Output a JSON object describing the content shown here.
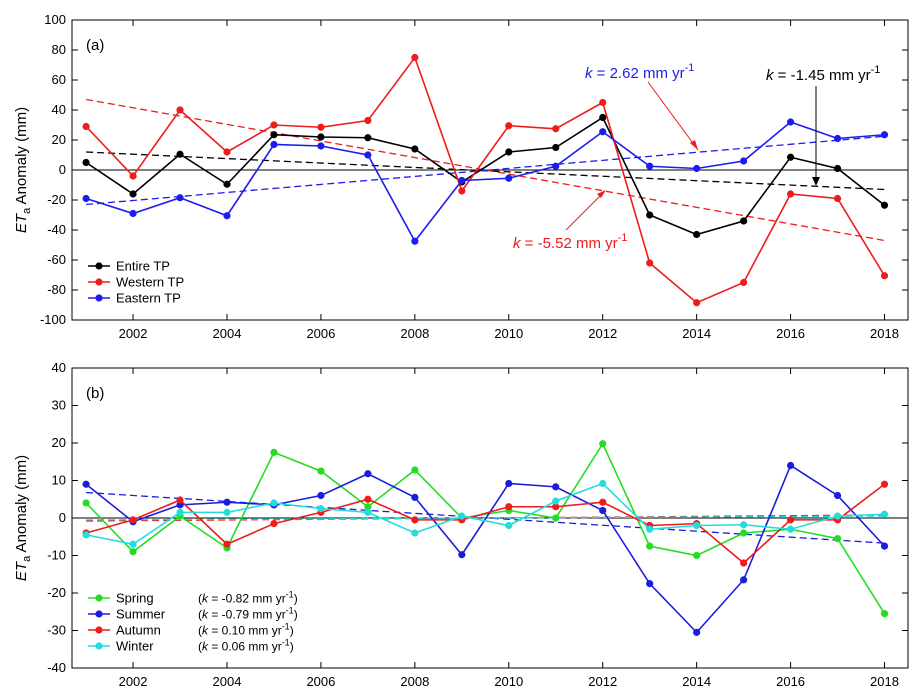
{
  "chart_data": [
    {
      "type": "line",
      "panel_label": "(a)",
      "ylabel_main": "ET",
      "ylabel_sub": "a",
      "ylabel_rest": " Anomaly (mm)",
      "xlim": [
        2000.7,
        2018.5
      ],
      "ylim": [
        -100,
        100
      ],
      "yticks": [
        -100,
        -80,
        -60,
        -40,
        -20,
        0,
        20,
        40,
        60,
        80,
        100
      ],
      "xticks": [
        2002,
        2004,
        2006,
        2008,
        2010,
        2012,
        2014,
        2016,
        2018
      ],
      "x": [
        2001,
        2002,
        2003,
        2004,
        2005,
        2006,
        2007,
        2008,
        2009,
        2010,
        2011,
        2012,
        2013,
        2014,
        2015,
        2016,
        2017,
        2018
      ],
      "legend_position": "bottom-left",
      "series": [
        {
          "name": "Entire TP",
          "color": "#000000",
          "values": [
            5,
            -16,
            10.5,
            -9.5,
            23.5,
            22,
            21.5,
            14,
            -8,
            12,
            15,
            35,
            -30,
            -43,
            -34,
            8.5,
            1,
            -23.5
          ],
          "trend": [
            12,
            -13
          ]
        },
        {
          "name": "Western TP",
          "color": "#ee1c1c",
          "values": [
            29,
            -4,
            40,
            12,
            30,
            28.5,
            33,
            75,
            -14,
            29.5,
            27.5,
            45,
            -62,
            -88.5,
            -75,
            -16,
            -19,
            -70.5
          ],
          "trend": [
            47,
            -47
          ]
        },
        {
          "name": "Eastern  TP",
          "color": "#1c1cee",
          "values": [
            -19,
            -29,
            -18.5,
            -30.5,
            17,
            16,
            10,
            -47.5,
            -7,
            -5.5,
            2.5,
            25.5,
            2.5,
            1,
            6,
            32,
            21,
            23.5
          ],
          "trend": [
            -23,
            22.5
          ]
        }
      ],
      "annotations": [
        {
          "text_k": "k",
          "text_mid": " = 2.62 mm yr",
          "text_sup": "-1",
          "color": "#1c1cee"
        },
        {
          "text_k": "k",
          "text_mid": " = -1.45 mm yr",
          "text_sup": "-1",
          "color": "#000000"
        },
        {
          "text_k": "k",
          "text_mid": " = -5.52 mm yr",
          "text_sup": "-1",
          "color": "#ee1c1c"
        }
      ]
    },
    {
      "type": "line",
      "panel_label": "(b)",
      "ylabel_main": "ET",
      "ylabel_sub": "a",
      "ylabel_rest": " Anomaly (mm)",
      "xlim": [
        2000.7,
        2018.5
      ],
      "ylim": [
        -40,
        40
      ],
      "yticks": [
        -40,
        -30,
        -20,
        -10,
        0,
        10,
        20,
        30,
        40
      ],
      "xticks": [
        2002,
        2004,
        2006,
        2008,
        2010,
        2012,
        2014,
        2016,
        2018
      ],
      "x": [
        2001,
        2002,
        2003,
        2004,
        2005,
        2006,
        2007,
        2008,
        2009,
        2010,
        2011,
        2012,
        2013,
        2014,
        2015,
        2016,
        2017,
        2018
      ],
      "legend_position": "bottom-left",
      "series": [
        {
          "name": "Spring",
          "k_label": "(k = -0.82 mm yr",
          "k_sup": "-1",
          "k_close": ")",
          "color": "#22dd22",
          "values": [
            4,
            -9,
            0.5,
            -8,
            17.5,
            12.5,
            3,
            12.8,
            0,
            2,
            0,
            19.8,
            -7.5,
            -10,
            -4,
            -3,
            -5.5,
            -25.5
          ],
          "trend": null
        },
        {
          "name": "Summer",
          "k_label": "(k = -0.79 mm yr",
          "k_sup": "-1",
          "k_close": ")",
          "color": "#1c1cdd",
          "values": [
            9,
            -1,
            3.5,
            4.2,
            3.5,
            6,
            11.8,
            5.5,
            -9.8,
            9.2,
            8.3,
            2,
            -17.5,
            -30.5,
            -16.5,
            14,
            6,
            -7.5
          ],
          "trend": [
            6.8,
            -6.7
          ]
        },
        {
          "name": "Autumn",
          "k_label": "(k =  0.10 mm yr",
          "k_sup": "-1",
          "k_close": ")",
          "color": "#ee1c1c",
          "values": [
            -4,
            -0.5,
            4.8,
            -7,
            -1.5,
            1.5,
            5,
            -0.5,
            -0.5,
            3,
            3,
            4.2,
            -2,
            -1.5,
            -12,
            -0.5,
            -0.5,
            9
          ],
          "trend": [
            -0.8,
            0.8
          ]
        },
        {
          "name": "Winter",
          "k_label": "(k =  0.06 mm yr",
          "k_sup": "-1",
          "k_close": ")",
          "color": "#22dddd",
          "values": [
            -4.5,
            -7,
            1.5,
            1.5,
            4,
            2.5,
            1.5,
            -4,
            0.5,
            -2,
            4.5,
            9.2,
            -3,
            -2,
            -1.8,
            -3,
            0.5,
            1
          ],
          "trend": [
            -0.5,
            0.5
          ]
        }
      ]
    }
  ]
}
